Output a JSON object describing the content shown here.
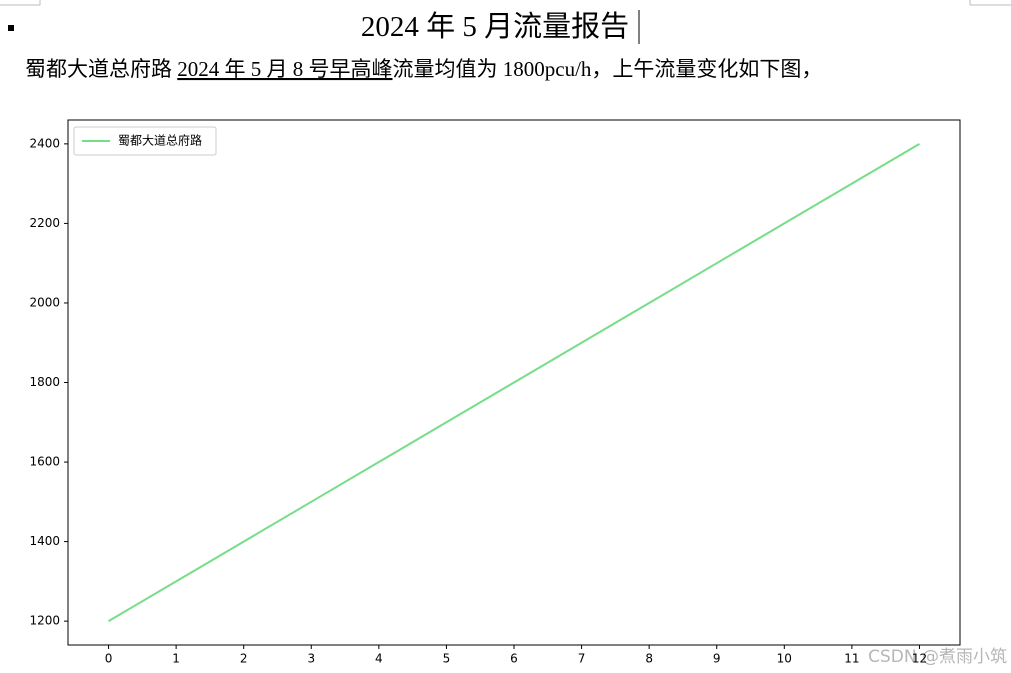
{
  "document": {
    "title": "2024 年 5 月流量报告",
    "paragraph": [
      "蜀都大道总府路 ",
      "2024 年 5 月 8 号早高峰",
      "流量均值为 1800pcu/h，上午流量变化如下图，"
    ],
    "watermark": "CSDN @煮雨小筑"
  },
  "chart_data": {
    "type": "line",
    "x": [
      0,
      1,
      2,
      3,
      4,
      5,
      6,
      7,
      8,
      9,
      10,
      11,
      12
    ],
    "series": [
      {
        "name": "蜀都大道总府路",
        "color": "#77dd88",
        "values": [
          1200,
          1300,
          1400,
          1500,
          1600,
          1700,
          1800,
          1900,
          2000,
          2100,
          2200,
          2300,
          2400
        ]
      }
    ],
    "xlim": [
      -0.6,
      12.6
    ],
    "ylim": [
      1140,
      2460
    ],
    "xticks": [
      0,
      1,
      2,
      3,
      4,
      5,
      6,
      7,
      8,
      9,
      10,
      11,
      12
    ],
    "yticks": [
      1200,
      1400,
      1600,
      1800,
      2000,
      2200,
      2400
    ],
    "legend": "upper left",
    "grid": false
  }
}
